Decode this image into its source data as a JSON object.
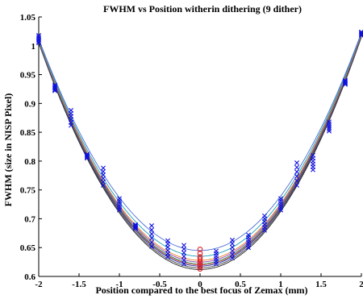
{
  "chart_data": {
    "type": "line",
    "title": "FWHM vs Position witherin dithering (9 dither)",
    "xlabel": "Position compared to the best focus of Zemax (mm)",
    "ylabel": "FWHM (size in NISP Pixel)",
    "xlim": [
      -2,
      2
    ],
    "ylim": [
      0.6,
      1.05
    ],
    "xticks": [
      -2,
      -1.5,
      -1,
      -0.5,
      0,
      0.5,
      1,
      1.5,
      2
    ],
    "xtick_labels": [
      "-2",
      "-1.5",
      "-1",
      "-0.5",
      "0",
      "0.5",
      "1",
      "1.5",
      "2"
    ],
    "yticks": [
      0.6,
      0.65,
      0.7,
      0.75,
      0.8,
      0.85,
      0.9,
      0.95,
      1,
      1.05
    ],
    "ytick_labels": [
      "0.6",
      "0.65",
      "0.7",
      "0.75",
      "0.8",
      "0.85",
      "0.9",
      "0.95",
      "1",
      "1.05"
    ],
    "grid": false,
    "fit_curves": {
      "description_free": true,
      "minimum_x": [
        0,
        0,
        0,
        0,
        0,
        0,
        0,
        0,
        0
      ],
      "minimum_y": [
        0.612,
        0.615,
        0.618,
        0.62,
        0.622,
        0.625,
        0.628,
        0.635,
        0.645
      ],
      "value_at_x_-2": [
        1.005,
        1.006,
        1.007,
        1.008,
        1.008,
        1.009,
        1.01,
        1.011,
        1.012
      ],
      "value_at_x_2": [
        1.015,
        1.016,
        1.017,
        1.018,
        1.019,
        1.02,
        1.021,
        1.022,
        1.023
      ],
      "colors": [
        "#222222",
        "#444444",
        "#1f3fbf",
        "#c0392b",
        "#2e8b57",
        "#8e44ad",
        "#e67e22",
        "#17a2b8",
        "#4a6fd8"
      ]
    },
    "measured_points": {
      "marker": "x",
      "color": "#1010e0",
      "x": [
        -2,
        -1.8,
        -1.6,
        -1.4,
        -1.2,
        -1,
        -0.8,
        -0.6,
        -0.4,
        -0.2,
        0.2,
        0.4,
        0.6,
        0.8,
        1,
        1.2,
        1.4,
        1.6,
        1.8,
        2
      ],
      "y_min": [
        1.005,
        0.922,
        0.862,
        0.805,
        0.758,
        0.715,
        0.683,
        0.652,
        0.634,
        0.622,
        0.622,
        0.632,
        0.65,
        0.68,
        0.715,
        0.758,
        0.785,
        0.852,
        0.933,
        1.018
      ],
      "y_max": [
        1.018,
        0.932,
        0.888,
        0.812,
        0.788,
        0.735,
        0.69,
        0.688,
        0.662,
        0.654,
        0.644,
        0.663,
        0.672,
        0.705,
        0.735,
        0.797,
        0.81,
        0.868,
        0.94,
        1.024
      ]
    },
    "center_points": {
      "marker": "o",
      "color": "#e0202a",
      "x": [
        0,
        0,
        0,
        0,
        0,
        0,
        0,
        0,
        0
      ],
      "y": [
        0.613,
        0.617,
        0.62,
        0.623,
        0.626,
        0.63,
        0.634,
        0.64,
        0.647
      ]
    }
  }
}
